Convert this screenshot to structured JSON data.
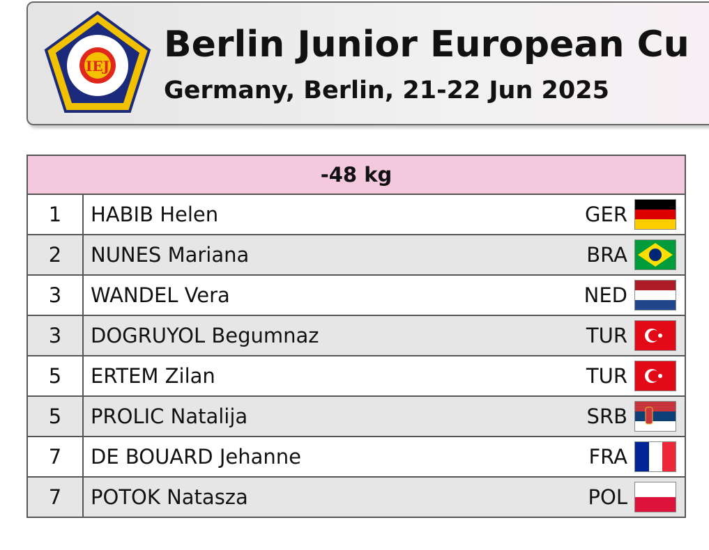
{
  "header": {
    "title": "Berlin Junior European Cu",
    "subtitle": "Germany, Berlin, 21-22 Jun 2025"
  },
  "table": {
    "category": "-48 kg",
    "rows": [
      [
        "1",
        "HABIB Helen",
        "GER"
      ],
      [
        "2",
        "NUNES Mariana",
        "BRA"
      ],
      [
        "3",
        "WANDEL Vera",
        "NED"
      ],
      [
        "3",
        "DOGRUYOL Begumnaz",
        "TUR"
      ],
      [
        "5",
        "ERTEM Zilan",
        "TUR"
      ],
      [
        "5",
        "PROLIC Natalija",
        "SRB"
      ],
      [
        "7",
        "DE BOUARD Jehanne",
        "FRA"
      ],
      [
        "7",
        "POTOK Natasza",
        "POL"
      ]
    ]
  }
}
